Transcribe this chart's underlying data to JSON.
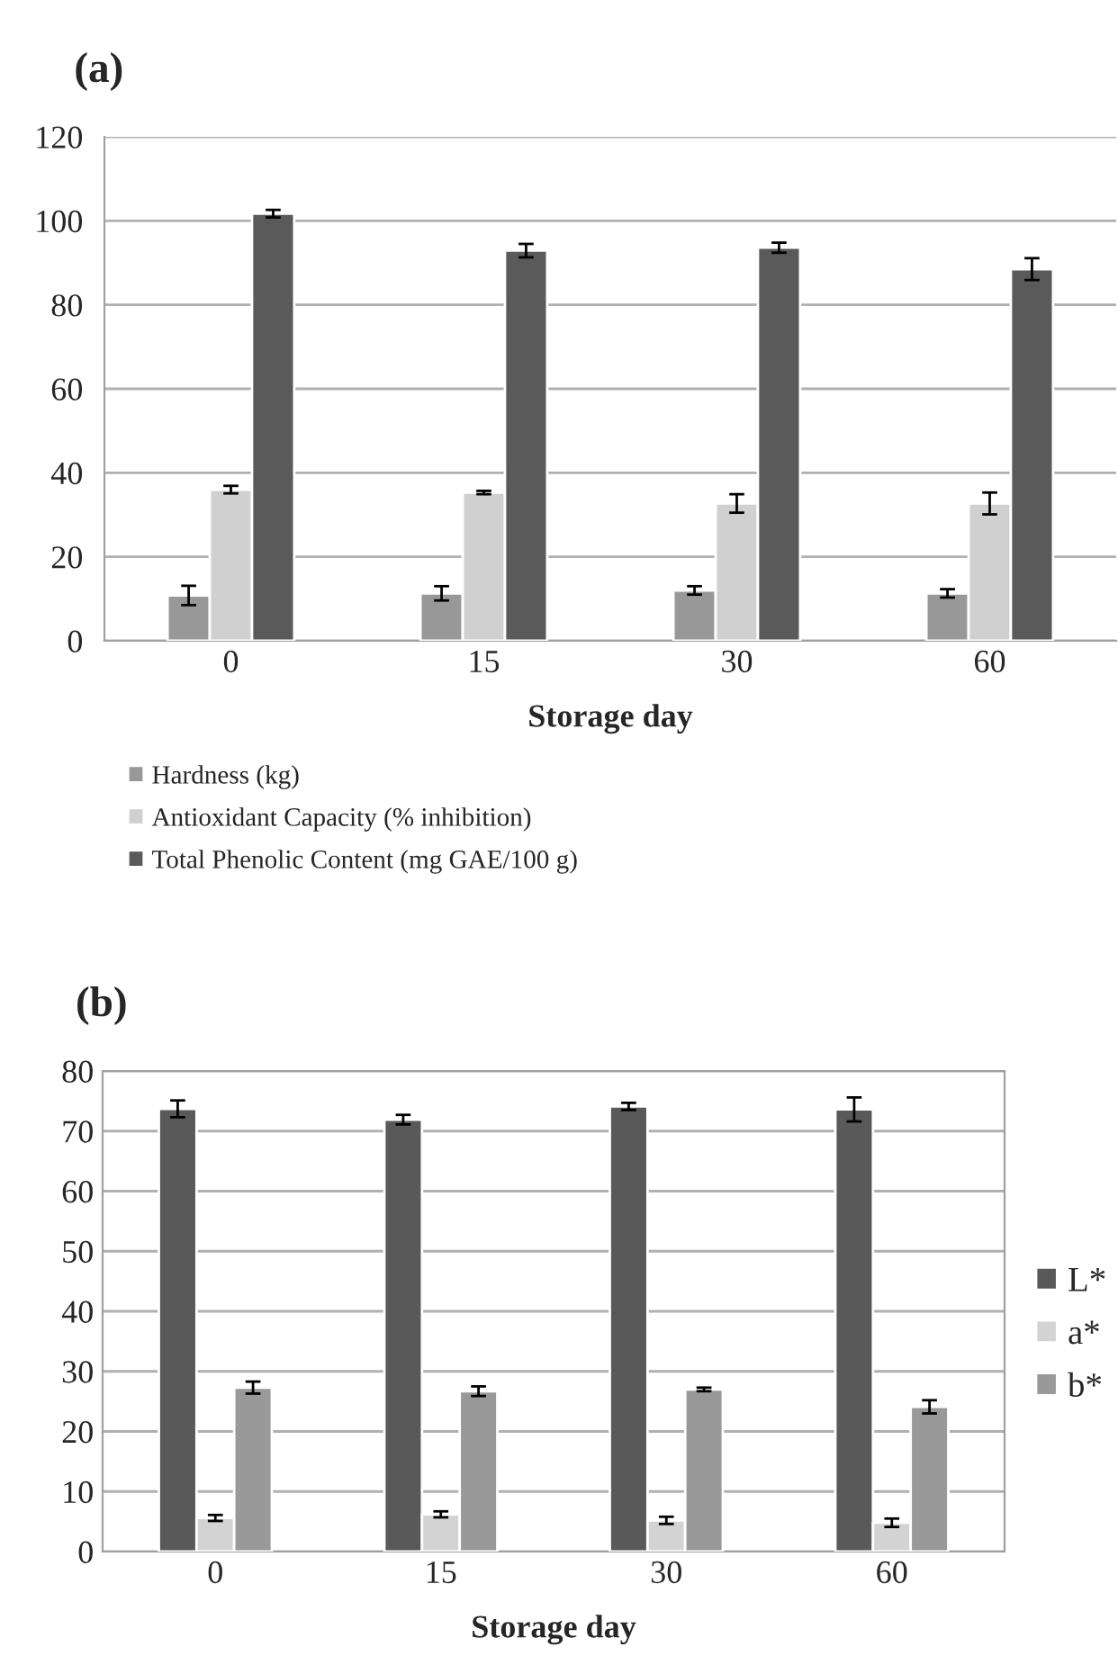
{
  "chart_data": [
    {
      "type": "bar",
      "title": "(a)",
      "xlabel": "Storage day",
      "categories": [
        "0",
        "15",
        "30",
        "60"
      ],
      "series": [
        {
          "name": "Hardness (kg)",
          "color": "#989898",
          "values": [
            10.8,
            11.3,
            12.0,
            11.3
          ],
          "errors": [
            2.3,
            1.7,
            1.0,
            1.0
          ]
        },
        {
          "name": "Antioxidant Capacity (% inhibition)",
          "color": "#d0d0d0",
          "values": [
            36.0,
            35.3,
            32.7,
            32.7
          ],
          "errors": [
            0.9,
            0.4,
            2.2,
            2.6
          ]
        },
        {
          "name": "Total Phenolic Content (mg GAE/100 g)",
          "color": "#5a5a5a",
          "values": [
            101.7,
            92.9,
            93.6,
            88.5
          ],
          "errors": [
            0.9,
            1.6,
            1.2,
            2.6
          ]
        }
      ],
      "ylim": [
        0,
        120
      ],
      "yticks": [
        0,
        20,
        40,
        60,
        80,
        100,
        120
      ],
      "grid": "y",
      "legend": "bottom"
    },
    {
      "type": "bar",
      "title": "(b)",
      "xlabel": "Storage day",
      "categories": [
        "0",
        "15",
        "30",
        "60"
      ],
      "series": [
        {
          "name": "L*",
          "color": "#595959",
          "values": [
            73.7,
            71.9,
            74.1,
            73.6
          ],
          "errors": [
            1.4,
            0.8,
            0.6,
            2.0
          ]
        },
        {
          "name": "a*",
          "color": "#d3d3d3",
          "values": [
            5.6,
            6.2,
            5.2,
            4.8
          ],
          "errors": [
            0.5,
            0.5,
            0.6,
            0.7
          ]
        },
        {
          "name": "b*",
          "color": "#999999",
          "values": [
            27.3,
            26.7,
            27.0,
            24.1
          ],
          "errors": [
            1.0,
            0.8,
            0.3,
            1.1
          ]
        }
      ],
      "ylim": [
        0,
        80
      ],
      "yticks": [
        0,
        10,
        20,
        30,
        40,
        50,
        60,
        70,
        80
      ],
      "grid": "y",
      "legend": "right"
    }
  ]
}
